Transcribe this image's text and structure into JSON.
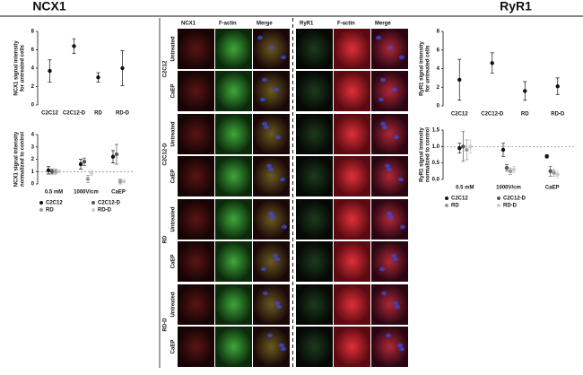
{
  "figure": {
    "section_titles": [
      "NCX1",
      "RyR1"
    ],
    "columns_left": [
      "NCX1",
      "F-actin",
      "Merge"
    ],
    "columns_right": [
      "RyR1",
      "F-actin",
      "Merge"
    ],
    "groups": [
      {
        "label": "C2C12",
        "rows": [
          "Untreated",
          "CaEP"
        ],
        "letters": [
          "A",
          "E"
        ]
      },
      {
        "label": "C2C12-D",
        "rows": [
          "Untreated",
          "CaEP"
        ],
        "letters": [
          "B",
          "F"
        ]
      },
      {
        "label": "RD",
        "rows": [
          "Untreated",
          "CaEP"
        ],
        "letters": [
          "C",
          "G"
        ]
      },
      {
        "label": "RD-D",
        "rows": [
          "Untreated",
          "CaEP"
        ],
        "letters": [
          "D",
          "H"
        ]
      }
    ]
  },
  "chart_data": [
    {
      "type": "errorbar",
      "ylabel": [
        "NCX1 signal intensity",
        "for untreated cells"
      ],
      "categories": [
        "C2C12",
        "C2C12-D",
        "RD",
        "RD-D"
      ],
      "values": [
        3.7,
        6.4,
        3.0,
        4.0
      ],
      "errors": [
        1.2,
        0.8,
        0.5,
        1.9
      ],
      "color": "#111111",
      "ylim": [
        0,
        8
      ],
      "yticks": [
        0,
        2,
        4,
        6,
        8
      ]
    },
    {
      "type": "errorbar",
      "ylabel": [
        "NCX1 signal intensity",
        "normalized to control"
      ],
      "categories": [
        "0.5 mM",
        "1000V/cm",
        "CaEP"
      ],
      "series": [
        {
          "name": "C2C12",
          "color": "#111111",
          "values": [
            1.1,
            1.6,
            2.2
          ],
          "errors": [
            0.3,
            0.4,
            0.5
          ]
        },
        {
          "name": "C2C12-D",
          "color": "#555555",
          "values": [
            1.0,
            1.8,
            2.4
          ],
          "errors": [
            0.2,
            0.3,
            0.8
          ]
        },
        {
          "name": "RD",
          "color": "#999999",
          "values": [
            1.0,
            0.4,
            0.2
          ],
          "errors": [
            0.2,
            0.3,
            0.2
          ]
        },
        {
          "name": "RD-D",
          "color": "#cccccc",
          "values": [
            1.0,
            0.9,
            0.2
          ],
          "errors": [
            0.1,
            0.2,
            0.1
          ]
        }
      ],
      "reference_line": 1,
      "ylim": [
        0,
        4
      ],
      "yticks": [
        0,
        1,
        2,
        3,
        4
      ]
    },
    {
      "type": "errorbar",
      "ylabel": [
        "RyR1 signal intensity",
        "for untreated cells"
      ],
      "categories": [
        "C2C12",
        "C2C12-D",
        "RD",
        "RD-D"
      ],
      "values": [
        2.8,
        4.6,
        1.6,
        2.1
      ],
      "errors": [
        2.2,
        1.1,
        1.0,
        0.9
      ],
      "color": "#111111",
      "ylim": [
        0,
        8
      ],
      "yticks": [
        0,
        2,
        4,
        6,
        8
      ]
    },
    {
      "type": "errorbar",
      "ylabel": [
        "RyR1 signal intensity",
        "normalized to control"
      ],
      "categories": [
        "0.5 mM",
        "1000V/cm",
        "CaEP"
      ],
      "series": [
        {
          "name": "C2C12",
          "color": "#111111",
          "values": [
            0.95,
            0.9,
            0.7
          ],
          "errors": [
            0.15,
            0.2,
            0.05
          ]
        },
        {
          "name": "C2C12-D",
          "color": "#555555",
          "values": [
            1.0,
            0.35,
            0.25
          ],
          "errors": [
            0.45,
            0.1,
            0.15
          ]
        },
        {
          "name": "RD",
          "color": "#999999",
          "values": [
            0.9,
            0.25,
            0.2
          ],
          "errors": [
            0.3,
            0.1,
            0.1
          ]
        },
        {
          "name": "RD-D",
          "color": "#cccccc",
          "values": [
            1.0,
            0.3,
            0.15
          ],
          "errors": [
            0.2,
            0.1,
            0.1
          ]
        }
      ],
      "reference_line": 1,
      "ylim": [
        0,
        1.5
      ],
      "yticks": [
        {
          "value": 0,
          "label": "0.0"
        },
        {
          "value": 0.5,
          "label": "0.5"
        },
        {
          "value": 1,
          "label": "1.0"
        },
        {
          "value": 1.5,
          "label": "1.5"
        }
      ]
    }
  ]
}
